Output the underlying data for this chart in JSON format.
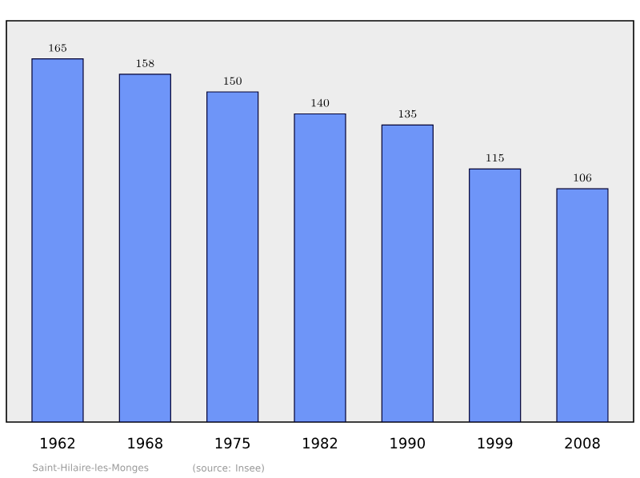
{
  "chart_data": {
    "type": "bar",
    "categories": [
      "1962",
      "1968",
      "1975",
      "1982",
      "1990",
      "1999",
      "2008"
    ],
    "values": [
      165,
      158,
      150,
      140,
      135,
      115,
      106
    ],
    "color": "#6e95f8",
    "data_labels": true,
    "annotations": [
      "Saint-Hilaire-les-Monges",
      "(source: Insee)"
    ]
  }
}
